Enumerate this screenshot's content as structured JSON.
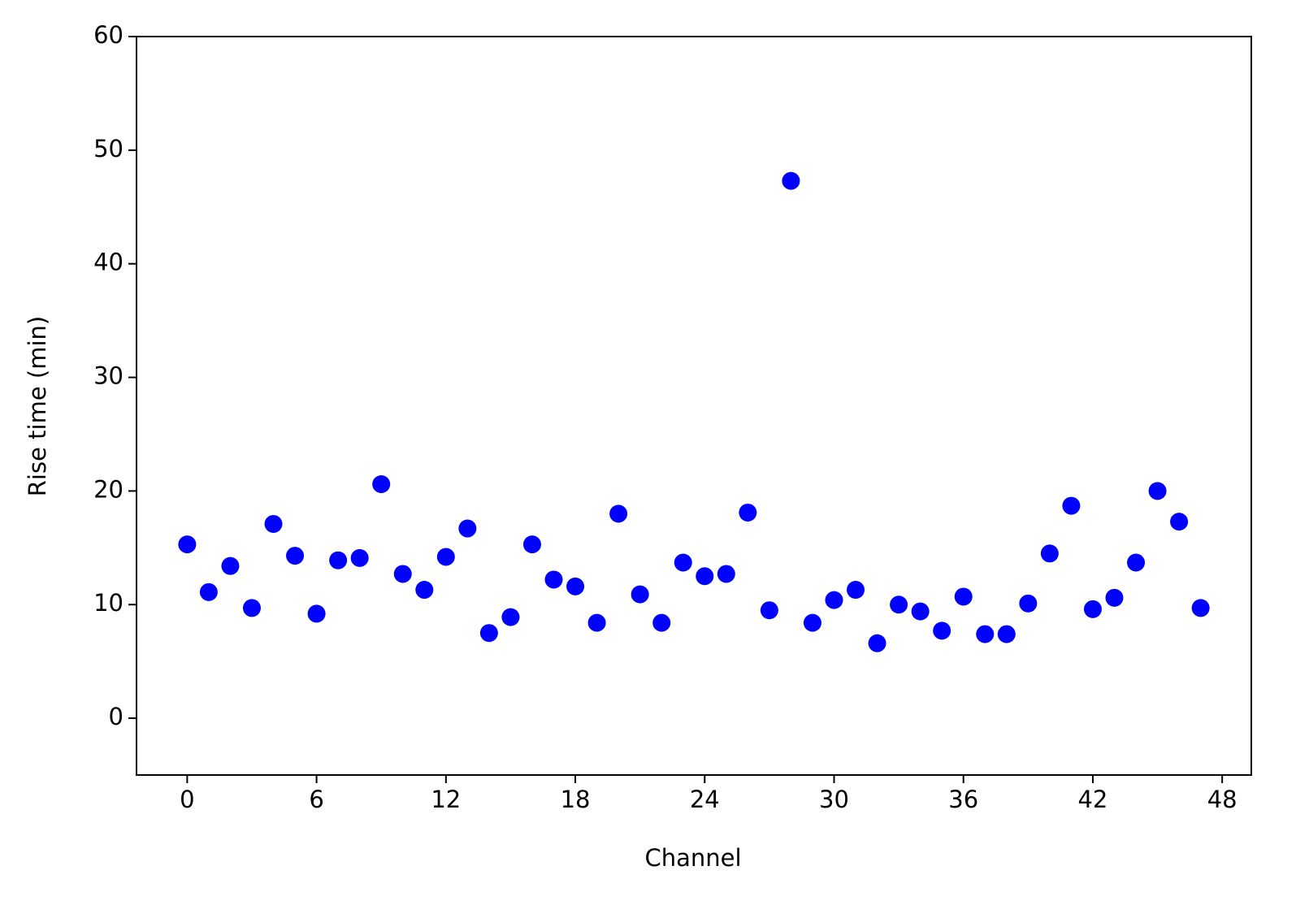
{
  "chart_data": {
    "type": "scatter",
    "xlabel": "Channel",
    "ylabel": "Rise time (min)",
    "x": [
      0,
      1,
      2,
      3,
      4,
      5,
      6,
      7,
      8,
      9,
      10,
      11,
      12,
      13,
      14,
      15,
      16,
      17,
      18,
      19,
      20,
      21,
      22,
      23,
      24,
      25,
      26,
      27,
      28,
      29,
      30,
      31,
      32,
      33,
      34,
      35,
      36,
      37,
      38,
      39,
      40,
      41,
      42,
      43,
      44,
      45,
      46,
      47
    ],
    "values": [
      15.3,
      11.1,
      13.4,
      9.7,
      17.1,
      14.3,
      9.2,
      13.9,
      14.1,
      20.6,
      12.7,
      11.3,
      14.2,
      16.7,
      7.5,
      8.9,
      15.3,
      12.2,
      11.6,
      8.4,
      18.0,
      10.9,
      8.4,
      13.7,
      12.5,
      12.7,
      18.1,
      9.5,
      47.3,
      8.4,
      10.4,
      11.3,
      6.6,
      10.0,
      9.4,
      7.7,
      10.7,
      7.4,
      7.4,
      10.1,
      14.5,
      18.7,
      9.6,
      10.6,
      13.7,
      20.0,
      17.3,
      9.7
    ],
    "color": "#0000ff",
    "xlim": [
      -2.35,
      49.35
    ],
    "ylim": [
      -5,
      60
    ],
    "xticks": [
      0,
      6,
      12,
      18,
      24,
      30,
      36,
      42,
      48
    ],
    "yticks": [
      0,
      10,
      20,
      30,
      40,
      50,
      60
    ],
    "grid": false
  }
}
